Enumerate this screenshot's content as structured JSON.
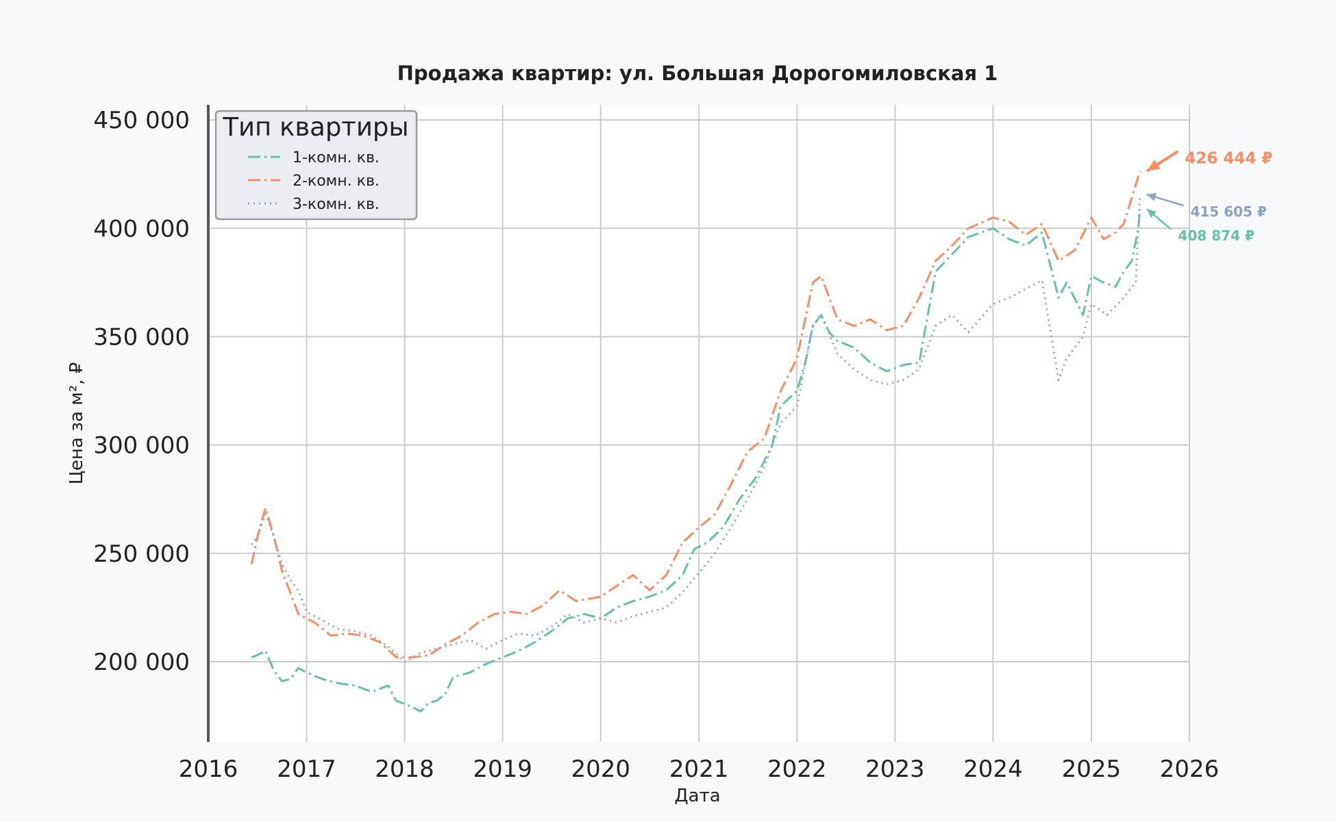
{
  "chart_data": {
    "type": "line",
    "title": "Продажа квартир: ул. Большая Дорогомиловская 1",
    "xlabel": "Дата",
    "ylabel": "Цена за м², ₽",
    "xlim": [
      "2016-01-01",
      "2026-01-01"
    ],
    "ylim": [
      163000,
      457000
    ],
    "x_ticks": [
      "2016",
      "2017",
      "2018",
      "2019",
      "2020",
      "2021",
      "2022",
      "2023",
      "2024",
      "2025",
      "2026"
    ],
    "y_ticks": [
      {
        "value": 200000,
        "label": "200 000"
      },
      {
        "value": 250000,
        "label": "250 000"
      },
      {
        "value": 300000,
        "label": "300 000"
      },
      {
        "value": 350000,
        "label": "350 000"
      },
      {
        "value": 400000,
        "label": "400 000"
      },
      {
        "value": 450000,
        "label": "450 000"
      }
    ],
    "grid": true,
    "legend": {
      "title": "Тип квартиры",
      "position": "top-left"
    },
    "series": [
      {
        "name": "1-комн. кв.",
        "color": "#66c2a5",
        "style": "dashdot",
        "points": [
          [
            "2016-06-10",
            202000
          ],
          [
            "2016-07-01",
            203000
          ],
          [
            "2016-08-01",
            205000
          ],
          [
            "2016-09-01",
            196000
          ],
          [
            "2016-10-01",
            191000
          ],
          [
            "2016-11-01",
            192000
          ],
          [
            "2016-12-01",
            197000
          ],
          [
            "2017-01-01",
            195000
          ],
          [
            "2017-03-01",
            192000
          ],
          [
            "2017-05-01",
            190000
          ],
          [
            "2017-07-01",
            189000
          ],
          [
            "2017-09-01",
            186000
          ],
          [
            "2017-11-01",
            189000
          ],
          [
            "2017-12-01",
            182000
          ],
          [
            "2018-02-01",
            179000
          ],
          [
            "2018-03-01",
            177000
          ],
          [
            "2018-04-01",
            181000
          ],
          [
            "2018-05-01",
            182000
          ],
          [
            "2018-06-01",
            185000
          ],
          [
            "2018-07-01",
            193000
          ],
          [
            "2018-09-01",
            195000
          ],
          [
            "2018-11-01",
            199000
          ],
          [
            "2019-01-01",
            202000
          ],
          [
            "2019-03-01",
            205000
          ],
          [
            "2019-05-01",
            209000
          ],
          [
            "2019-07-01",
            214000
          ],
          [
            "2019-09-01",
            220000
          ],
          [
            "2019-11-01",
            222000
          ],
          [
            "2020-01-01",
            220000
          ],
          [
            "2020-03-01",
            225000
          ],
          [
            "2020-05-01",
            228000
          ],
          [
            "2020-07-01",
            230000
          ],
          [
            "2020-09-01",
            233000
          ],
          [
            "2020-11-01",
            240000
          ],
          [
            "2020-12-15",
            252000
          ],
          [
            "2021-02-01",
            255000
          ],
          [
            "2021-04-01",
            262000
          ],
          [
            "2021-06-01",
            275000
          ],
          [
            "2021-08-01",
            285000
          ],
          [
            "2021-10-01",
            300000
          ],
          [
            "2021-11-01",
            318000
          ],
          [
            "2022-01-01",
            325000
          ],
          [
            "2022-02-01",
            338000
          ],
          [
            "2022-03-01",
            355000
          ],
          [
            "2022-04-01",
            360000
          ],
          [
            "2022-05-01",
            352000
          ],
          [
            "2022-06-01",
            348000
          ],
          [
            "2022-08-01",
            345000
          ],
          [
            "2022-10-01",
            338000
          ],
          [
            "2022-12-01",
            334000
          ],
          [
            "2023-02-01",
            337000
          ],
          [
            "2023-04-01",
            338000
          ],
          [
            "2023-06-01",
            380000
          ],
          [
            "2023-08-01",
            388000
          ],
          [
            "2023-10-01",
            396000
          ],
          [
            "2024-01-01",
            400000
          ],
          [
            "2024-03-01",
            395000
          ],
          [
            "2024-05-01",
            392000
          ],
          [
            "2024-07-01",
            398000
          ],
          [
            "2024-09-01",
            368000
          ],
          [
            "2024-10-01",
            375000
          ],
          [
            "2024-12-01",
            360000
          ],
          [
            "2025-01-01",
            378000
          ],
          [
            "2025-02-15",
            375000
          ],
          [
            "2025-04-01",
            373000
          ],
          [
            "2025-05-01",
            380000
          ],
          [
            "2025-06-01",
            385000
          ],
          [
            "2025-06-25",
            400000
          ],
          [
            "2025-07-01",
            408874
          ]
        ]
      },
      {
        "name": "2-комн. кв.",
        "color": "#fc8d62",
        "style": "dashdot",
        "points": [
          [
            "2016-06-10",
            245000
          ],
          [
            "2016-07-01",
            257000
          ],
          [
            "2016-08-01",
            271000
          ],
          [
            "2016-09-01",
            258000
          ],
          [
            "2016-10-01",
            242000
          ],
          [
            "2016-11-01",
            232000
          ],
          [
            "2016-12-01",
            222000
          ],
          [
            "2017-02-01",
            218000
          ],
          [
            "2017-04-01",
            212000
          ],
          [
            "2017-06-01",
            213000
          ],
          [
            "2017-08-01",
            212000
          ],
          [
            "2017-10-01",
            209000
          ],
          [
            "2017-12-01",
            202000
          ],
          [
            "2018-02-01",
            202000
          ],
          [
            "2018-04-01",
            203000
          ],
          [
            "2018-06-01",
            208000
          ],
          [
            "2018-08-01",
            212000
          ],
          [
            "2018-10-01",
            218000
          ],
          [
            "2018-12-01",
            222000
          ],
          [
            "2019-02-01",
            223000
          ],
          [
            "2019-04-01",
            222000
          ],
          [
            "2019-06-01",
            226000
          ],
          [
            "2019-08-01",
            233000
          ],
          [
            "2019-10-01",
            228000
          ],
          [
            "2020-01-01",
            230000
          ],
          [
            "2020-03-01",
            235000
          ],
          [
            "2020-05-01",
            240000
          ],
          [
            "2020-07-01",
            233000
          ],
          [
            "2020-09-01",
            240000
          ],
          [
            "2020-11-01",
            255000
          ],
          [
            "2021-01-01",
            262000
          ],
          [
            "2021-03-01",
            268000
          ],
          [
            "2021-05-01",
            282000
          ],
          [
            "2021-07-01",
            297000
          ],
          [
            "2021-09-01",
            303000
          ],
          [
            "2021-11-01",
            325000
          ],
          [
            "2022-01-01",
            340000
          ],
          [
            "2022-03-01",
            375000
          ],
          [
            "2022-04-01",
            378000
          ],
          [
            "2022-05-01",
            368000
          ],
          [
            "2022-06-01",
            358000
          ],
          [
            "2022-08-01",
            355000
          ],
          [
            "2022-10-01",
            358000
          ],
          [
            "2022-12-01",
            353000
          ],
          [
            "2023-02-01",
            355000
          ],
          [
            "2023-04-01",
            368000
          ],
          [
            "2023-06-01",
            385000
          ],
          [
            "2023-08-01",
            392000
          ],
          [
            "2023-10-01",
            400000
          ],
          [
            "2024-01-01",
            405000
          ],
          [
            "2024-03-01",
            403000
          ],
          [
            "2024-05-01",
            397000
          ],
          [
            "2024-07-01",
            402000
          ],
          [
            "2024-09-01",
            385000
          ],
          [
            "2024-11-01",
            390000
          ],
          [
            "2025-01-01",
            405000
          ],
          [
            "2025-02-15",
            395000
          ],
          [
            "2025-04-01",
            398000
          ],
          [
            "2025-05-01",
            402000
          ],
          [
            "2025-06-15",
            420000
          ],
          [
            "2025-07-01",
            426444
          ]
        ]
      },
      {
        "name": "3-комн. кв.",
        "color": "#8da0cb",
        "style": "dotted",
        "points": [
          [
            "2016-06-10",
            254000
          ],
          [
            "2016-07-01",
            258000
          ],
          [
            "2016-08-01",
            268000
          ],
          [
            "2016-09-01",
            258000
          ],
          [
            "2016-10-01",
            245000
          ],
          [
            "2016-11-01",
            238000
          ],
          [
            "2016-12-01",
            233000
          ],
          [
            "2017-01-01",
            223000
          ],
          [
            "2017-03-01",
            219000
          ],
          [
            "2017-05-01",
            215000
          ],
          [
            "2017-07-01",
            214000
          ],
          [
            "2017-09-01",
            212000
          ],
          [
            "2017-11-01",
            207000
          ],
          [
            "2018-01-01",
            200000
          ],
          [
            "2018-03-01",
            204000
          ],
          [
            "2018-05-01",
            206000
          ],
          [
            "2018-07-01",
            208000
          ],
          [
            "2018-09-01",
            210000
          ],
          [
            "2018-11-01",
            206000
          ],
          [
            "2019-01-01",
            210000
          ],
          [
            "2019-03-01",
            213000
          ],
          [
            "2019-05-01",
            212000
          ],
          [
            "2019-07-01",
            216000
          ],
          [
            "2019-09-01",
            222000
          ],
          [
            "2019-11-01",
            218000
          ],
          [
            "2020-01-01",
            220000
          ],
          [
            "2020-03-01",
            218000
          ],
          [
            "2020-05-01",
            221000
          ],
          [
            "2020-07-01",
            223000
          ],
          [
            "2020-09-01",
            225000
          ],
          [
            "2020-11-01",
            232000
          ],
          [
            "2021-01-01",
            241000
          ],
          [
            "2021-03-01",
            250000
          ],
          [
            "2021-05-01",
            262000
          ],
          [
            "2021-07-01",
            275000
          ],
          [
            "2021-09-01",
            290000
          ],
          [
            "2021-11-01",
            310000
          ],
          [
            "2022-01-01",
            318000
          ],
          [
            "2022-03-01",
            355000
          ],
          [
            "2022-04-01",
            360000
          ],
          [
            "2022-06-01",
            342000
          ],
          [
            "2022-08-01",
            335000
          ],
          [
            "2022-10-01",
            330000
          ],
          [
            "2022-12-01",
            328000
          ],
          [
            "2023-02-01",
            330000
          ],
          [
            "2023-04-01",
            335000
          ],
          [
            "2023-06-01",
            355000
          ],
          [
            "2023-08-01",
            360000
          ],
          [
            "2023-10-01",
            352000
          ],
          [
            "2024-01-01",
            365000
          ],
          [
            "2024-03-01",
            368000
          ],
          [
            "2024-05-01",
            372000
          ],
          [
            "2024-07-01",
            376000
          ],
          [
            "2024-09-01",
            330000
          ],
          [
            "2024-10-01",
            340000
          ],
          [
            "2024-12-01",
            350000
          ],
          [
            "2025-01-01",
            365000
          ],
          [
            "2025-03-01",
            360000
          ],
          [
            "2025-05-01",
            368000
          ],
          [
            "2025-06-15",
            375000
          ],
          [
            "2025-07-01",
            415605
          ]
        ]
      }
    ],
    "annotations": [
      {
        "text": "426 444 ₽",
        "series": "2-комн. кв.",
        "x": "2025-07-01",
        "y": 426444,
        "label_x": "2025-12-15",
        "label_y": 433000,
        "color": "#fc8d62"
      },
      {
        "text": "415 605 ₽",
        "series": "3-комн. кв.",
        "x": "2025-07-01",
        "y": 415605,
        "label_x": "2026-01-05",
        "label_y": 408000,
        "color": "#8da0cb"
      },
      {
        "text": "408 874 ₽",
        "series": "1-комн. кв.",
        "x": "2025-07-01",
        "y": 408874,
        "label_x": "2025-11-20",
        "label_y": 397000,
        "color": "#66c2a5"
      }
    ]
  }
}
